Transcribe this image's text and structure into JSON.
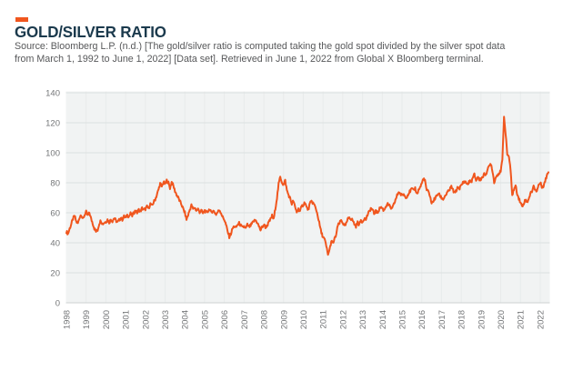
{
  "header": {
    "title": "GOLD/SILVER RATIO",
    "source_lines": [
      "Source: Bloomberg L.P. (n.d.) [The gold/silver ratio is computed taking the gold spot divided by the silver spot data",
      "from March 1, 1992 to June 1, 2022] [Data set]. Retrieved in June 1, 2022 from Global X Bloomberg terminal."
    ]
  },
  "colors": {
    "accent_orange": "#F0561E",
    "title_navy": "#1B3A4D",
    "source_gray": "#57585A",
    "plot_background": "#F1F3F3",
    "gridline": "#DCE0E0",
    "gridline_vertical": "#E8EBEB",
    "axis_zero_line": "#CDD2D2",
    "axis_label_gray": "#747678",
    "line_orange": "#F0561E"
  },
  "chart_data": {
    "type": "line",
    "title": "GOLD/SILVER RATIO",
    "xlabel": "",
    "ylabel": "",
    "ylim": [
      0,
      140
    ],
    "y_ticks": [
      0,
      20,
      40,
      60,
      80,
      100,
      120,
      140
    ],
    "x_tick_labels": [
      "1998",
      "1999",
      "2000",
      "2001",
      "2002",
      "2003",
      "2004",
      "2005",
      "2006",
      "2007",
      "2008",
      "2009",
      "2010",
      "2011",
      "2012",
      "2013",
      "2014",
      "2015",
      "2016",
      "2017",
      "2018",
      "2019",
      "2020",
      "2021",
      "2022"
    ],
    "grid": "on",
    "legend": "none",
    "series": [
      {
        "name": "Gold/Silver Ratio",
        "frequency": "monthly",
        "start": "1998-01",
        "end": "2022-06",
        "values": [
          47.5,
          46,
          49.5,
          52.5,
          56,
          58,
          54,
          53,
          57,
          59,
          55.5,
          58.5,
          60.5,
          58,
          60,
          56,
          53,
          49.5,
          47.5,
          48.5,
          53,
          55,
          52.5,
          53.5,
          54,
          55.5,
          53.5,
          55.5,
          54.5,
          56.5,
          55,
          53.5,
          55,
          56.5,
          55.5,
          57.5,
          56.5,
          58.5,
          57.5,
          59.5,
          58,
          60,
          61.5,
          60,
          62,
          61,
          63,
          62,
          62.5,
          64,
          63,
          66,
          64.5,
          67,
          69,
          72,
          75.5,
          79.5,
          77.5,
          80.5,
          79,
          81.5,
          80,
          76.5,
          80.5,
          78,
          74.5,
          72,
          70,
          67.5,
          65.5,
          62.5,
          60,
          55.5,
          58.5,
          62,
          65,
          62.5,
          63.5,
          61.5,
          62.5,
          60.5,
          61.5,
          59.5,
          61.5,
          60,
          61,
          62.5,
          60,
          61.5,
          60.5,
          59,
          60.5,
          62,
          60,
          57,
          55.5,
          52,
          47.5,
          44,
          46,
          49.5,
          51,
          50,
          52,
          53,
          51.5,
          50,
          51,
          49.5,
          52,
          50.5,
          51.5,
          53,
          54.5,
          55,
          53.5,
          51,
          48.5,
          50.5,
          52,
          50.5,
          51.5,
          53.5,
          55.5,
          58,
          55.5,
          63,
          70,
          79,
          84,
          80.5,
          78.5,
          81.5,
          75,
          72,
          69.5,
          66,
          68,
          63.5,
          60.5,
          62.5,
          61,
          64,
          65.5,
          67,
          63.5,
          62,
          66,
          67.5,
          66.5,
          64.5,
          61.5,
          57,
          51.5,
          46.5,
          44,
          42,
          37.5,
          32,
          35.5,
          41,
          39.5,
          42.5,
          45.5,
          51.5,
          53,
          55,
          53.5,
          51,
          52.5,
          55.5,
          57,
          56,
          55,
          52.5,
          51,
          53.5,
          52,
          55,
          54,
          56.5,
          55.5,
          58.5,
          60.5,
          63,
          62,
          59.5,
          61,
          60,
          62,
          64,
          63,
          61.5,
          64,
          66,
          65,
          63.5,
          62.5,
          65.5,
          68.5,
          71.5,
          74,
          72.5,
          71.5,
          72.5,
          70.5,
          71,
          73,
          74.5,
          76,
          74.5,
          76.5,
          72.5,
          75,
          77,
          79.5,
          83,
          81,
          75,
          74,
          71.5,
          66,
          68,
          69.5,
          71,
          73,
          71.5,
          70,
          69,
          71,
          72.5,
          74,
          75.5,
          77.5,
          75,
          73,
          75,
          77,
          76.5,
          78,
          80,
          81,
          80,
          79,
          81,
          80.5,
          83,
          85.5,
          81.5,
          84,
          82,
          82.5,
          84,
          85.5,
          86,
          88.5,
          91,
          93,
          88,
          80.5,
          83.5,
          85.5,
          86.5,
          87.5,
          95,
          124,
          112,
          99,
          97.5,
          88,
          72,
          75.5,
          78,
          73,
          69.5,
          67,
          64,
          66.5,
          68.5,
          67,
          69.5,
          72.5,
          74.5,
          77.5,
          75.5,
          74.5,
          78.5,
          80,
          77.5,
          78,
          81,
          85,
          87
        ]
      }
    ]
  }
}
